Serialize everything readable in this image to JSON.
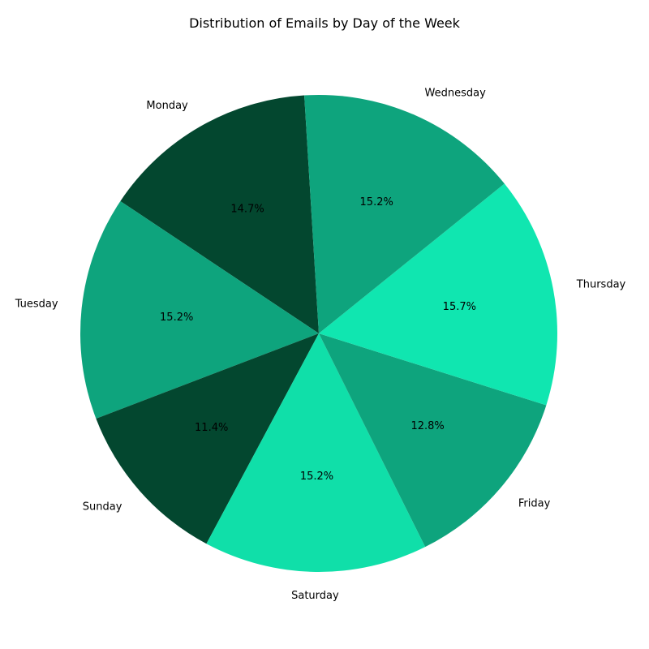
{
  "chart_data": {
    "type": "pie",
    "title": "Distribution of Emails by Day of the Week",
    "slices": [
      {
        "label": "Monday",
        "pct_label": "14.7%",
        "value": 14.7,
        "color": "#03472f"
      },
      {
        "label": "Tuesday",
        "pct_label": "15.2%",
        "value": 15.2,
        "color": "#0ea47d"
      },
      {
        "label": "Sunday",
        "pct_label": "11.4%",
        "value": 11.4,
        "color": "#03472f"
      },
      {
        "label": "Saturday",
        "pct_label": "15.2%",
        "value": 15.2,
        "color": "#10dfa9"
      },
      {
        "label": "Friday",
        "pct_label": "12.8%",
        "value": 12.8,
        "color": "#0ea47d"
      },
      {
        "label": "Thursday",
        "pct_label": "15.7%",
        "value": 15.7,
        "color": "#10e6b0"
      },
      {
        "label": "Wednesday",
        "pct_label": "15.2%",
        "value": 15.2,
        "color": "#0ea47d"
      }
    ],
    "direction": "counterclockwise",
    "legend": "none"
  }
}
